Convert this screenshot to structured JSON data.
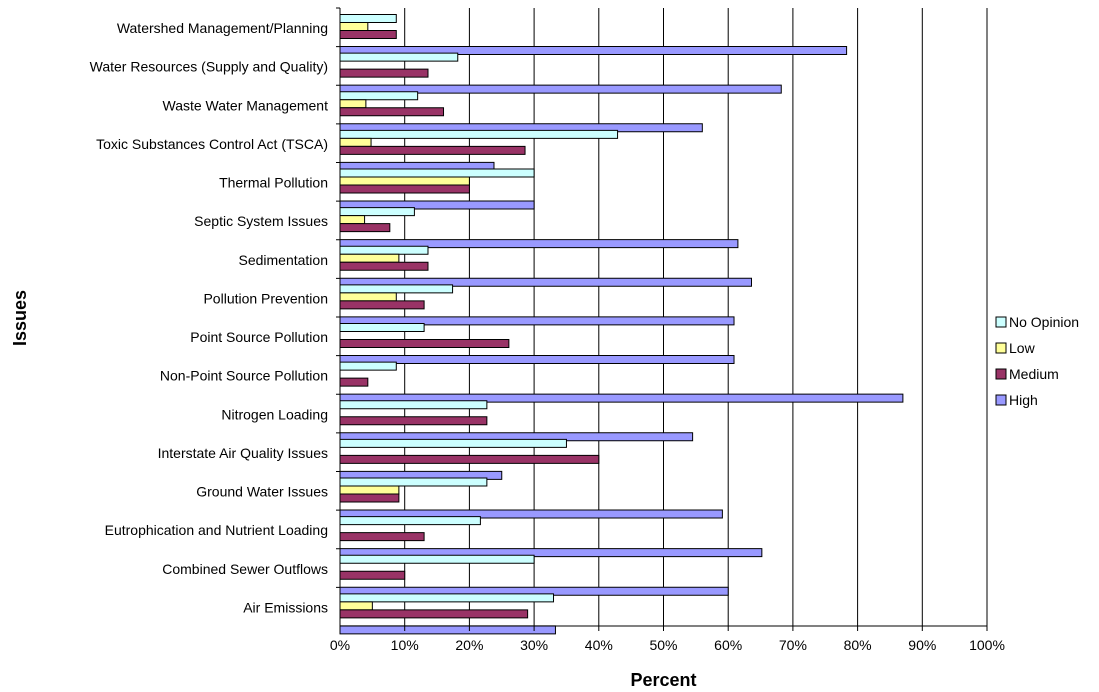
{
  "chart_data": {
    "type": "bar",
    "orientation": "horizontal",
    "categories": [
      "Watershed Management/Planning",
      "Water Resources (Supply and Quality)",
      "Waste Water Management",
      "Toxic Substances Control Act (TSCA)",
      "Thermal Pollution",
      "Septic System Issues",
      "Sedimentation",
      "Pollution Prevention",
      "Point Source Pollution",
      "Non-Point Source Pollution",
      "Nitrogen Loading",
      "Interstate Air Quality Issues",
      "Ground Water Issues",
      "Eutrophication and Nutrient Loading",
      "Combined Sewer Outflows",
      "Air Emissions"
    ],
    "series": [
      {
        "name": "No Opinion",
        "color": "#ccffff",
        "values": [
          8.7,
          18.2,
          12.0,
          42.9,
          30.0,
          11.5,
          13.6,
          17.4,
          13.0,
          8.7,
          22.7,
          35.0,
          22.7,
          21.7,
          30.0,
          33.0
        ]
      },
      {
        "name": "Low",
        "color": "#ffff99",
        "values": [
          4.3,
          0,
          4.0,
          4.8,
          20.0,
          3.8,
          9.1,
          8.7,
          0,
          0,
          0,
          0,
          9.1,
          0,
          0,
          5.0
        ]
      },
      {
        "name": "Medium",
        "color": "#993366",
        "values": [
          8.7,
          13.6,
          16.0,
          28.6,
          20.0,
          7.7,
          13.6,
          13.0,
          26.1,
          4.3,
          22.7,
          40.0,
          9.1,
          13.0,
          10.0,
          29.0
        ]
      },
      {
        "name": "High",
        "color": "#9999ff",
        "values": [
          78.3,
          68.2,
          56.0,
          23.8,
          30.0,
          61.5,
          63.6,
          60.9,
          60.9,
          87.0,
          54.5,
          25.0,
          59.1,
          65.2,
          60.0,
          33.3
        ]
      }
    ],
    "xlabel": "Percent",
    "ylabel": "Issues",
    "xlim": [
      0,
      100
    ],
    "xticks": [
      "0%",
      "10%",
      "20%",
      "30%",
      "40%",
      "50%",
      "60%",
      "70%",
      "80%",
      "90%",
      "100%"
    ],
    "grid": "vertical",
    "legend": "right",
    "legend_order": [
      "No Opinion",
      "Low",
      "Medium",
      "High"
    ]
  }
}
